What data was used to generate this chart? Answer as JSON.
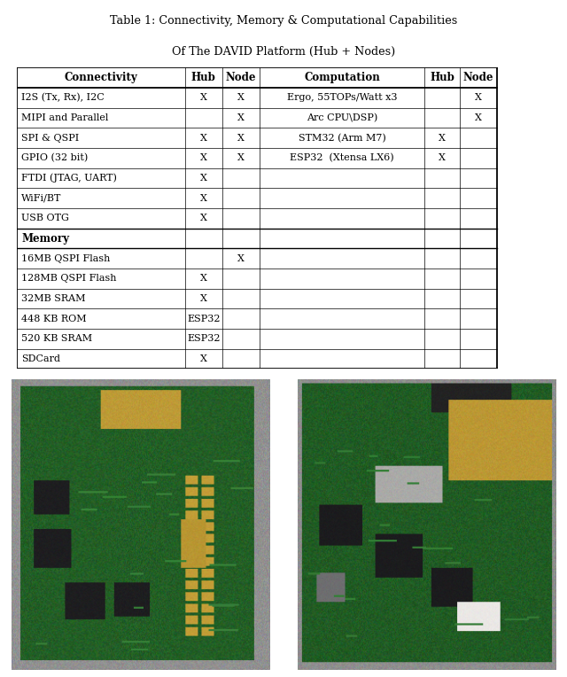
{
  "title_line1": "Table 1: Connectivity, Memory & Computational Capabilities",
  "title_line2": "Of The DAVID Platform (Hub + Nodes)",
  "bg_color": "#ffffff",
  "col_bounds": [
    0.0,
    0.315,
    0.385,
    0.455,
    0.765,
    0.83,
    0.9
  ],
  "header_labels": [
    "Connectivity",
    "Hub",
    "Node",
    "Computation",
    "Hub",
    "Node"
  ],
  "connectivity_rows": [
    [
      "I2S (Tx, Rx), I2C",
      "X",
      "X",
      "Ergo, 55TOPs/Watt x3",
      "",
      "X"
    ],
    [
      "MIPI and Parallel",
      "",
      "X",
      "Arc CPU\\DSP)",
      "",
      "X"
    ],
    [
      "SPI & QSPI",
      "X",
      "X",
      "STM32 (Arm M7)",
      "X",
      ""
    ],
    [
      "GPIO (32 bit)",
      "X",
      "X",
      "ESP32  (Xtensa LX6)",
      "X",
      ""
    ],
    [
      "FTDI (JTAG, UART)",
      "X",
      "",
      "",
      "",
      ""
    ],
    [
      "WiFi/BT",
      "X",
      "",
      "",
      "",
      ""
    ],
    [
      "USB OTG",
      "X",
      "",
      "",
      "",
      ""
    ]
  ],
  "memory_rows": [
    [
      "16MB QSPI Flash",
      "",
      "X",
      "",
      "",
      ""
    ],
    [
      "128MB QSPI Flash",
      "X",
      "",
      "",
      "",
      ""
    ],
    [
      "32MB SRAM",
      "X",
      "",
      "",
      "",
      ""
    ],
    [
      "448 KB ROM",
      "ESP32",
      "",
      "",
      "",
      ""
    ],
    [
      "520 KB SRAM",
      "ESP32",
      "",
      "",
      "",
      ""
    ],
    [
      "SDCard",
      "X",
      "",
      "",
      "",
      ""
    ]
  ],
  "img1_bg": "#8a8a88",
  "img2_bg": "#8a8a88",
  "board_color": "#2d6e2d",
  "board_color2": "#2a6630"
}
